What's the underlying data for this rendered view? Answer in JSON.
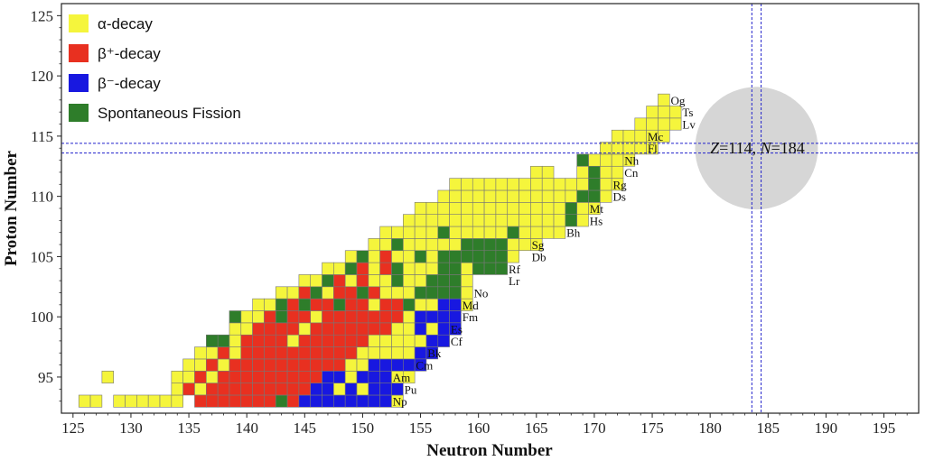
{
  "chart_data": {
    "type": "heatmap",
    "xlabel": "Neutron Number",
    "ylabel": "Proton Number",
    "xlim": [
      124,
      198
    ],
    "ylim": [
      92,
      126
    ],
    "xticks": [
      125,
      130,
      135,
      140,
      145,
      150,
      155,
      160,
      165,
      170,
      175,
      180,
      185,
      190,
      195
    ],
    "yticks": [
      95,
      100,
      105,
      110,
      115,
      120,
      125
    ],
    "legend_position": "top-left",
    "colors": {
      "alpha": "#f5f53c",
      "beta_plus": "#e83020",
      "beta_minus": "#1818e0",
      "sf": "#2e7d2a",
      "circle": "#d6d6d6",
      "guide": "#2222cc"
    },
    "legend": [
      {
        "key": "alpha",
        "label": "α-decay"
      },
      {
        "key": "beta_plus",
        "label": "β⁺-decay"
      },
      {
        "key": "beta_minus",
        "label": "β⁻-decay"
      },
      {
        "key": "sf",
        "label": "Spontaneous Fission"
      }
    ],
    "alpha_ranges": [
      [
        93,
        126,
        127
      ],
      [
        93,
        129,
        134
      ],
      [
        93,
        138,
        153
      ],
      [
        94,
        134,
        153
      ],
      [
        95,
        128,
        128
      ],
      [
        95,
        134,
        154
      ],
      [
        96,
        135,
        154
      ],
      [
        97,
        136,
        155
      ],
      [
        98,
        138,
        156
      ],
      [
        99,
        139,
        156
      ],
      [
        100,
        140,
        158
      ],
      [
        101,
        141,
        159
      ],
      [
        102,
        143,
        159
      ],
      [
        103,
        145,
        159
      ],
      [
        104,
        147,
        161
      ],
      [
        105,
        149,
        163
      ],
      [
        106,
        151,
        165
      ],
      [
        107,
        152,
        167
      ],
      [
        108,
        154,
        169
      ],
      [
        109,
        155,
        170
      ],
      [
        110,
        157,
        171
      ],
      [
        111,
        158,
        172
      ],
      [
        112,
        165,
        166
      ],
      [
        112,
        169,
        172
      ],
      [
        113,
        170,
        173
      ],
      [
        114,
        171,
        175
      ],
      [
        115,
        172,
        176
      ],
      [
        116,
        174,
        177
      ],
      [
        117,
        175,
        177
      ],
      [
        118,
        176,
        176
      ]
    ],
    "beta_plus_cells": [
      [
        93,
        136
      ],
      [
        93,
        137
      ],
      [
        93,
        138
      ],
      [
        93,
        139
      ],
      [
        93,
        140
      ],
      [
        93,
        141
      ],
      [
        93,
        142
      ],
      [
        93,
        143
      ],
      [
        93,
        144
      ],
      [
        94,
        135
      ],
      [
        94,
        137
      ],
      [
        94,
        138
      ],
      [
        94,
        139
      ],
      [
        94,
        140
      ],
      [
        94,
        141
      ],
      [
        94,
        142
      ],
      [
        94,
        143
      ],
      [
        94,
        144
      ],
      [
        94,
        145
      ],
      [
        95,
        136
      ],
      [
        95,
        138
      ],
      [
        95,
        139
      ],
      [
        95,
        140
      ],
      [
        95,
        141
      ],
      [
        95,
        142
      ],
      [
        95,
        143
      ],
      [
        95,
        144
      ],
      [
        95,
        145
      ],
      [
        95,
        146
      ],
      [
        96,
        137
      ],
      [
        96,
        139
      ],
      [
        96,
        140
      ],
      [
        96,
        141
      ],
      [
        96,
        142
      ],
      [
        96,
        143
      ],
      [
        96,
        144
      ],
      [
        96,
        145
      ],
      [
        96,
        146
      ],
      [
        96,
        147
      ],
      [
        96,
        148
      ],
      [
        97,
        138
      ],
      [
        97,
        140
      ],
      [
        97,
        141
      ],
      [
        97,
        142
      ],
      [
        97,
        143
      ],
      [
        97,
        144
      ],
      [
        97,
        145
      ],
      [
        97,
        146
      ],
      [
        97,
        147
      ],
      [
        97,
        148
      ],
      [
        97,
        149
      ],
      [
        98,
        140
      ],
      [
        98,
        141
      ],
      [
        98,
        142
      ],
      [
        98,
        143
      ],
      [
        98,
        145
      ],
      [
        98,
        146
      ],
      [
        98,
        147
      ],
      [
        98,
        148
      ],
      [
        98,
        149
      ],
      [
        98,
        150
      ],
      [
        99,
        141
      ],
      [
        99,
        142
      ],
      [
        99,
        143
      ],
      [
        99,
        144
      ],
      [
        99,
        146
      ],
      [
        99,
        147
      ],
      [
        99,
        148
      ],
      [
        99,
        149
      ],
      [
        99,
        150
      ],
      [
        99,
        151
      ],
      [
        99,
        152
      ],
      [
        100,
        142
      ],
      [
        100,
        144
      ],
      [
        100,
        145
      ],
      [
        100,
        147
      ],
      [
        100,
        148
      ],
      [
        100,
        149
      ],
      [
        100,
        150
      ],
      [
        100,
        151
      ],
      [
        100,
        152
      ],
      [
        100,
        153
      ],
      [
        101,
        144
      ],
      [
        101,
        146
      ],
      [
        101,
        147
      ],
      [
        101,
        149
      ],
      [
        101,
        150
      ],
      [
        101,
        152
      ],
      [
        101,
        153
      ],
      [
        102,
        145
      ],
      [
        102,
        148
      ],
      [
        102,
        149
      ],
      [
        102,
        151
      ],
      [
        103,
        148
      ],
      [
        103,
        150
      ],
      [
        104,
        150
      ],
      [
        104,
        152
      ],
      [
        105,
        152
      ]
    ],
    "beta_minus_cells": [
      [
        93,
        145
      ],
      [
        93,
        146
      ],
      [
        93,
        147
      ],
      [
        93,
        148
      ],
      [
        93,
        149
      ],
      [
        93,
        150
      ],
      [
        93,
        151
      ],
      [
        93,
        152
      ],
      [
        94,
        146
      ],
      [
        94,
        147
      ],
      [
        94,
        149
      ],
      [
        94,
        151
      ],
      [
        94,
        152
      ],
      [
        94,
        153
      ],
      [
        95,
        147
      ],
      [
        95,
        148
      ],
      [
        95,
        150
      ],
      [
        95,
        151
      ],
      [
        95,
        152
      ],
      [
        96,
        151
      ],
      [
        96,
        152
      ],
      [
        96,
        153
      ],
      [
        96,
        154
      ],
      [
        96,
        155
      ],
      [
        97,
        155
      ],
      [
        97,
        156
      ],
      [
        98,
        156
      ],
      [
        98,
        157
      ],
      [
        99,
        155
      ],
      [
        99,
        157
      ],
      [
        99,
        158
      ],
      [
        100,
        155
      ],
      [
        100,
        156
      ],
      [
        100,
        157
      ],
      [
        100,
        158
      ],
      [
        101,
        157
      ],
      [
        101,
        158
      ]
    ],
    "sf_cells": [
      [
        93,
        143
      ],
      [
        98,
        137
      ],
      [
        98,
        138
      ],
      [
        100,
        139
      ],
      [
        100,
        143
      ],
      [
        101,
        143
      ],
      [
        101,
        145
      ],
      [
        101,
        148
      ],
      [
        101,
        154
      ],
      [
        102,
        146
      ],
      [
        102,
        150
      ],
      [
        102,
        155
      ],
      [
        102,
        156
      ],
      [
        102,
        157
      ],
      [
        102,
        158
      ],
      [
        103,
        147
      ],
      [
        103,
        153
      ],
      [
        103,
        156
      ],
      [
        103,
        157
      ],
      [
        103,
        158
      ],
      [
        104,
        149
      ],
      [
        104,
        153
      ],
      [
        104,
        157
      ],
      [
        104,
        158
      ],
      [
        104,
        160
      ],
      [
        104,
        161
      ],
      [
        104,
        162
      ],
      [
        105,
        150
      ],
      [
        105,
        155
      ],
      [
        105,
        157
      ],
      [
        105,
        158
      ],
      [
        105,
        159
      ],
      [
        105,
        160
      ],
      [
        105,
        161
      ],
      [
        105,
        162
      ],
      [
        106,
        153
      ],
      [
        106,
        159
      ],
      [
        106,
        160
      ],
      [
        106,
        161
      ],
      [
        106,
        162
      ],
      [
        107,
        157
      ],
      [
        107,
        163
      ],
      [
        108,
        168
      ],
      [
        109,
        168
      ],
      [
        110,
        169
      ],
      [
        110,
        170
      ],
      [
        111,
        170
      ],
      [
        112,
        170
      ],
      [
        113,
        169
      ]
    ],
    "elements": [
      {
        "symbol": "Np",
        "n": 152,
        "z": 93
      },
      {
        "symbol": "Pu",
        "n": 153,
        "z": 94
      },
      {
        "symbol": "Am",
        "n": 152,
        "z": 95
      },
      {
        "symbol": "Cm",
        "n": 154,
        "z": 96
      },
      {
        "symbol": "Bk",
        "n": 155,
        "z": 97
      },
      {
        "symbol": "Cf",
        "n": 157,
        "z": 98
      },
      {
        "symbol": "Es",
        "n": 157,
        "z": 99
      },
      {
        "symbol": "Fm",
        "n": 158,
        "z": 100
      },
      {
        "symbol": "Md",
        "n": 158,
        "z": 101
      },
      {
        "symbol": "No",
        "n": 159,
        "z": 102
      },
      {
        "symbol": "Lr",
        "n": 162,
        "z": 103
      },
      {
        "symbol": "Rf",
        "n": 162,
        "z": 104
      },
      {
        "symbol": "Db",
        "n": 164,
        "z": 105
      },
      {
        "symbol": "Sg",
        "n": 164,
        "z": 106
      },
      {
        "symbol": "Bh",
        "n": 167,
        "z": 107
      },
      {
        "symbol": "Hs",
        "n": 169,
        "z": 108
      },
      {
        "symbol": "Mt",
        "n": 169,
        "z": 109
      },
      {
        "symbol": "Ds",
        "n": 171,
        "z": 110
      },
      {
        "symbol": "Rg",
        "n": 171,
        "z": 111
      },
      {
        "symbol": "Cn",
        "n": 172,
        "z": 112
      },
      {
        "symbol": "Nh",
        "n": 172,
        "z": 113
      },
      {
        "symbol": "Fl",
        "n": 174,
        "z": 114
      },
      {
        "symbol": "Mc",
        "n": 174,
        "z": 115
      },
      {
        "symbol": "Lv",
        "n": 177,
        "z": 116
      },
      {
        "symbol": "Ts",
        "n": 177,
        "z": 117
      },
      {
        "symbol": "Og",
        "n": 176,
        "z": 118
      }
    ],
    "annotation": {
      "label": "Z=114, N=184",
      "z_part": "Z",
      "z_val": "=114, ",
      "n_part": "N",
      "n_val": "=184",
      "n": 184,
      "z": 114,
      "radius_units": 5.3
    },
    "guide_lines": {
      "n": [
        183.6,
        184.4
      ],
      "z": [
        113.6,
        114.4
      ]
    }
  }
}
